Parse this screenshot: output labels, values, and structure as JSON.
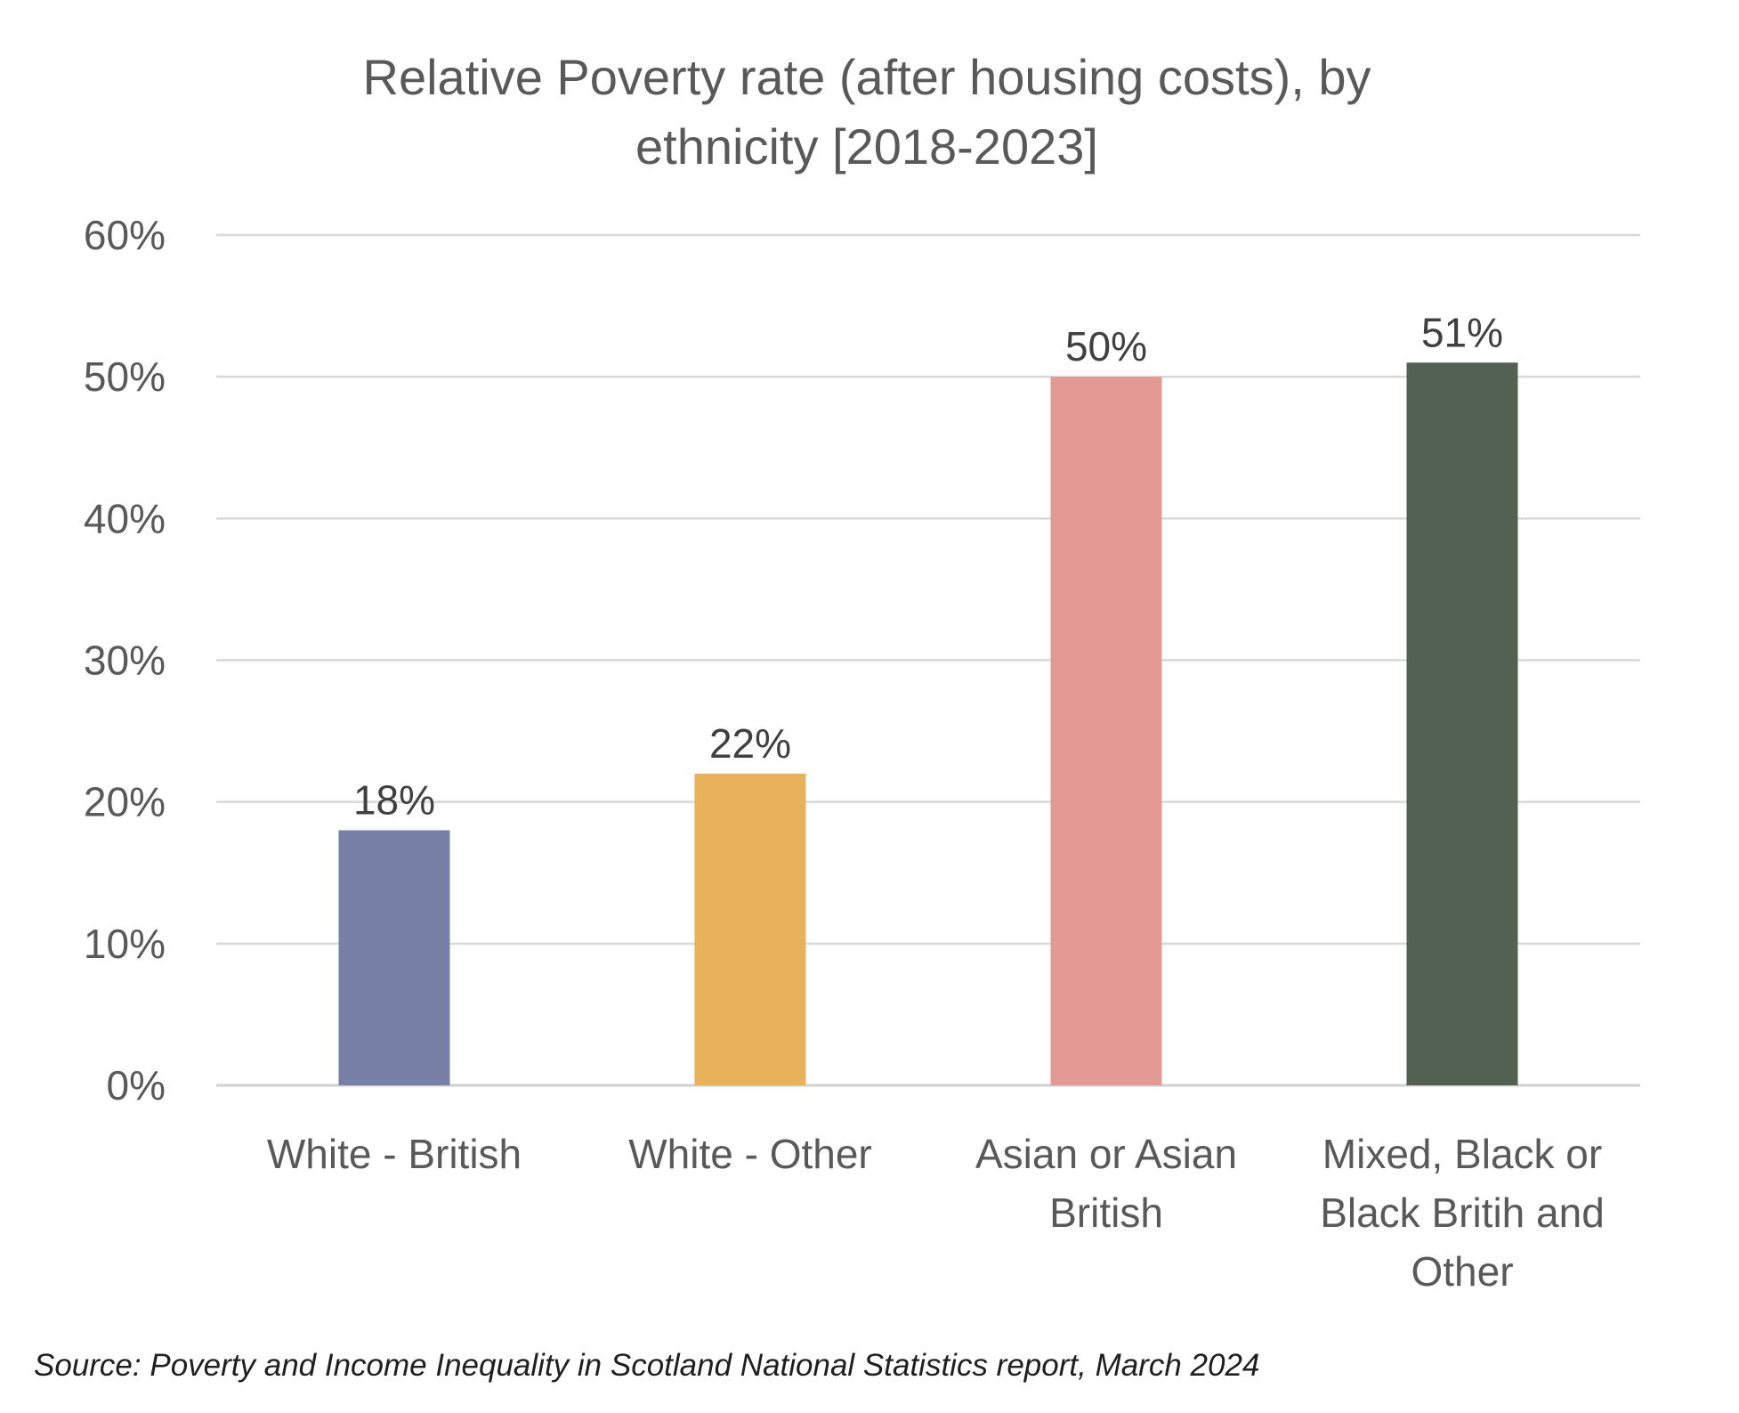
{
  "chart_data": {
    "type": "bar",
    "title_lines": [
      "Relative Poverty rate (after housing costs), by",
      "ethnicity [2018-2023]"
    ],
    "categories": [
      [
        "White - British"
      ],
      [
        "White - Other"
      ],
      [
        "Asian or Asian",
        "British"
      ],
      [
        "Mixed, Black or",
        "Black Britih and",
        "Other"
      ]
    ],
    "values": [
      18,
      22,
      50,
      51
    ],
    "data_labels": [
      "18%",
      "22%",
      "50%",
      "51%"
    ],
    "bar_colors": [
      "#7880a8",
      "#e8b25a",
      "#e39994",
      "#526152"
    ],
    "ylim": [
      0,
      60
    ],
    "yticks": [
      0,
      10,
      20,
      30,
      40,
      50,
      60
    ],
    "ytick_labels": [
      "0%",
      "10%",
      "20%",
      "30%",
      "40%",
      "50%",
      "60%"
    ],
    "xlabel": "",
    "ylabel": "",
    "grid": true,
    "legend": "none"
  },
  "footer": {
    "source": "Source: Poverty and Income Inequality in Scotland National Statistics report, March 2024"
  }
}
